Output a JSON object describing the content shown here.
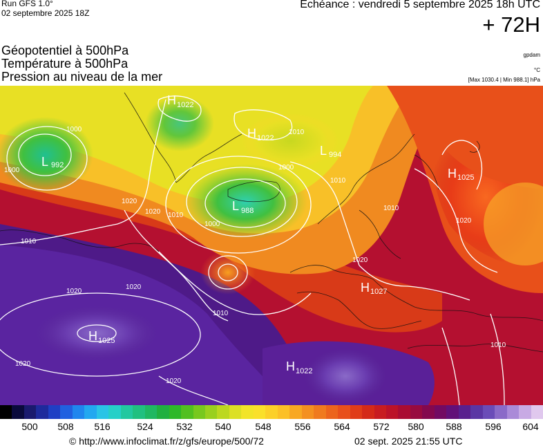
{
  "header": {
    "run_title": "Run GFS 1.0°",
    "run_date": "02 septembre 2025 18Z",
    "echeance": "Echéance : vendredi 5 septembre 2025 18h UTC",
    "forecast_hour": "+ 72H"
  },
  "layers": {
    "geopotential": "Géopotentiel à 500hPa",
    "temperature": "Température à 500hPa",
    "pressure": "Pression au niveau de la mer"
  },
  "units": {
    "gpdam": "gpdam",
    "celsius": "°C",
    "maxmin": "[Max 1030.4 | Min 988.1] hPa"
  },
  "pressure_centers": [
    {
      "type": "L",
      "value": "992"
    },
    {
      "type": "H",
      "value": "1022"
    },
    {
      "type": "H",
      "value": "1022"
    },
    {
      "type": "L",
      "value": "994"
    },
    {
      "type": "L",
      "value": "988"
    },
    {
      "type": "H",
      "value": "1025"
    },
    {
      "type": "H",
      "value": "1027"
    },
    {
      "type": "H",
      "value": "1025"
    },
    {
      "type": "H",
      "value": "1022"
    }
  ],
  "isobar_labels": [
    "1000",
    "1000",
    "1000",
    "1000",
    "1010",
    "1010",
    "1010",
    "1010",
    "1010",
    "1020",
    "1020",
    "1020",
    "1020",
    "1020",
    "1020",
    "1020",
    "1020",
    "1010",
    "1010"
  ],
  "colorbar": {
    "colors": [
      "#000000",
      "#0a0a3c",
      "#1a1a6e",
      "#1e2a9c",
      "#1f3fc4",
      "#2060e0",
      "#1f86ee",
      "#22a8f0",
      "#2ac4e6",
      "#26d0c8",
      "#22c8a0",
      "#20c080",
      "#1fb862",
      "#20b040",
      "#2eb828",
      "#52c020",
      "#78c81e",
      "#9ad01e",
      "#bcd820",
      "#dce024",
      "#f2e428",
      "#fae02a",
      "#fcd028",
      "#fcc026",
      "#f8a822",
      "#f49020",
      "#f07a1e",
      "#ec641c",
      "#e8501a",
      "#e03c18",
      "#d42a18",
      "#c81c20",
      "#bc1228",
      "#aa0c32",
      "#980a40",
      "#84084e",
      "#720a62",
      "#621078",
      "#58208e",
      "#5a36a4",
      "#6a4cb8",
      "#8a6ac8",
      "#aa8ad8",
      "#c8aae4",
      "#e0c8ee"
    ],
    "tick_values": [
      "500",
      "508",
      "516",
      "524",
      "532",
      "540",
      "548",
      "556",
      "564",
      "572",
      "580",
      "588",
      "596",
      "604"
    ]
  },
  "footer": {
    "url": "© http://www.infoclimat.fr/z/gfs/europe/500/72",
    "timestamp": "02 sept. 2025 21:55 UTC"
  }
}
